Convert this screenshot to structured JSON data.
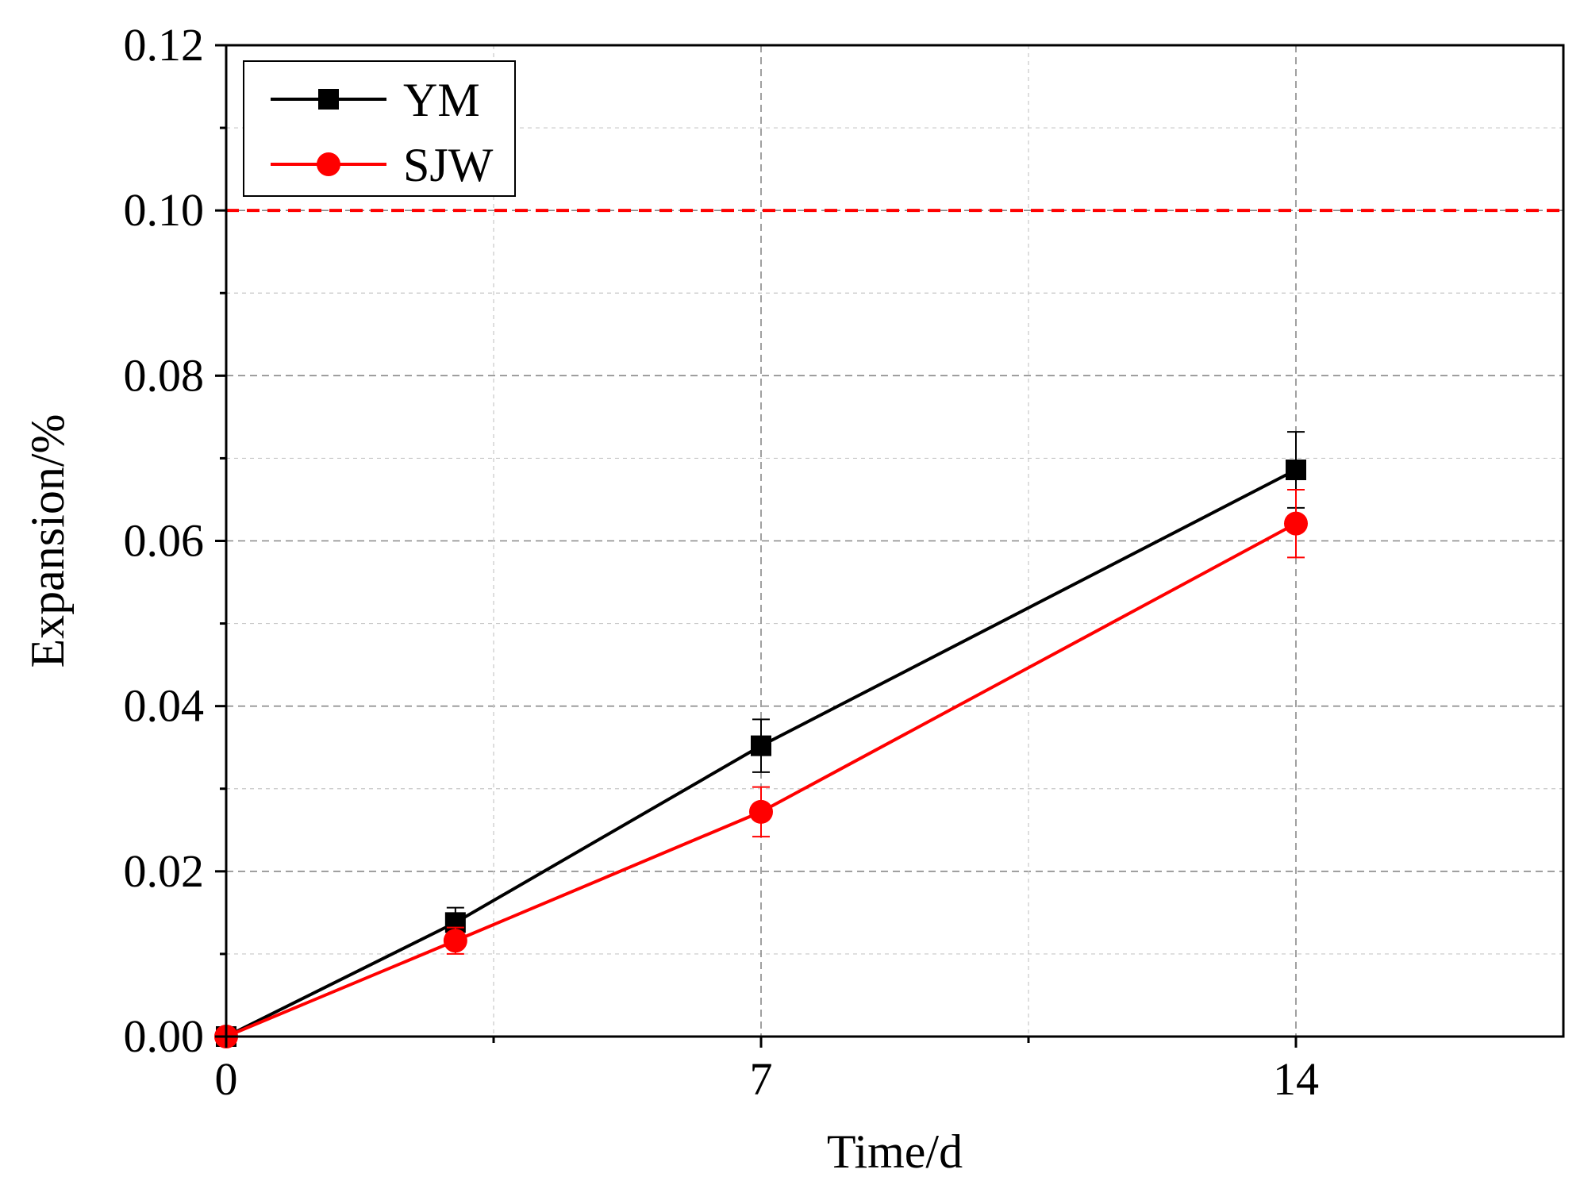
{
  "chart_data": {
    "type": "line",
    "title": "",
    "xlabel": "Time/d",
    "ylabel": "Expansion/%",
    "xlim": [
      0,
      17.5
    ],
    "ylim": [
      0,
      0.12
    ],
    "x_ticks": [
      0,
      7,
      14
    ],
    "x_tick_labels": [
      "0",
      "7",
      "14"
    ],
    "x_minor_ticks": [
      3.5,
      10.5
    ],
    "y_ticks": [
      0,
      0.02,
      0.04,
      0.06,
      0.08,
      0.1,
      0.12
    ],
    "y_tick_labels": [
      "0.00",
      "0.02",
      "0.04",
      "0.06",
      "0.08",
      "0.10",
      "0.12"
    ],
    "y_minor_ticks": [
      0.01,
      0.03,
      0.05,
      0.07,
      0.09,
      0.11
    ],
    "grid": true,
    "legend_position": "top-left",
    "reference_line": {
      "y": 0.1,
      "color": "#ff0000",
      "style": "dashed"
    },
    "series": [
      {
        "name": "YM",
        "color": "#000000",
        "marker": "square",
        "x": [
          0,
          3,
          7,
          14
        ],
        "y": [
          0,
          0.0138,
          0.0352,
          0.0686
        ],
        "error": [
          0,
          0.0018,
          0.0032,
          0.0046
        ]
      },
      {
        "name": "SJW",
        "color": "#ff0000",
        "marker": "circle",
        "x": [
          0,
          3,
          7,
          14
        ],
        "y": [
          0,
          0.0116,
          0.0272,
          0.0621
        ],
        "error": [
          0,
          0.0016,
          0.003,
          0.0041
        ]
      }
    ]
  }
}
